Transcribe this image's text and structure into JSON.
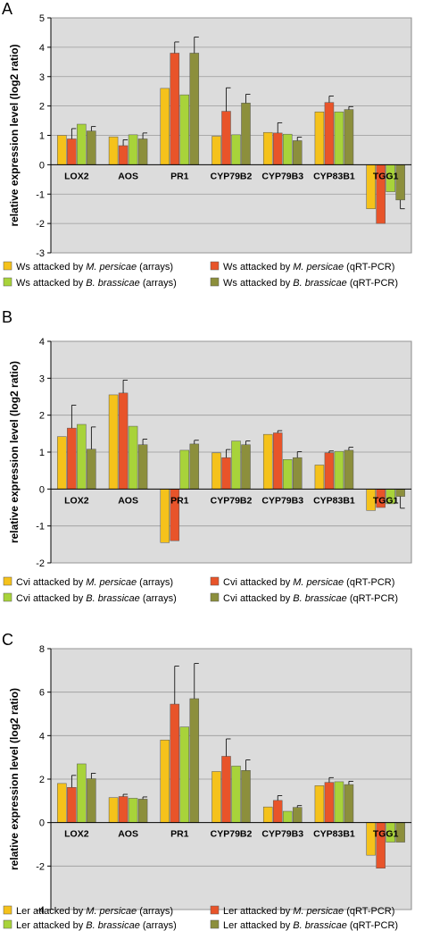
{
  "colors": {
    "series": [
      "#f5c21b",
      "#e8542a",
      "#a8d33a",
      "#8c8f3c"
    ],
    "plot_bg": "#dcdcdc",
    "grid": "#9a9a9a"
  },
  "chart_data": [
    {
      "panel": "A",
      "type": "bar",
      "ylabel": "relative expression level (log2 ratio)",
      "ylim": [
        -3,
        5
      ],
      "yticks": [
        -3,
        -2,
        -1,
        0,
        1,
        2,
        3,
        4,
        5
      ],
      "grid": true,
      "categories": [
        "LOX2",
        "AOS",
        "PR1",
        "CYP79B2",
        "CYP79B3",
        "CYP83B1",
        "TGG1"
      ],
      "series": [
        {
          "name": "Ws attacked by M. persicae (arrays)",
          "legend_prefix": "Ws attacked by ",
          "legend_species": "M. persicae",
          "legend_suffix": " (arrays)",
          "values": [
            1.0,
            0.95,
            2.6,
            0.97,
            1.1,
            1.8,
            -1.5
          ],
          "errors": [
            0,
            0,
            0,
            0,
            0,
            0,
            0
          ]
        },
        {
          "name": "Ws attacked by M. persicae (qRT-PCR)",
          "legend_prefix": "Ws attacked by ",
          "legend_species": "M. persicae",
          "legend_suffix": " (qRT-PCR)",
          "values": [
            0.88,
            0.65,
            3.8,
            1.82,
            1.08,
            2.12,
            -2.0
          ],
          "errors": [
            0.35,
            0.2,
            0.38,
            0.8,
            0.35,
            0.22,
            0
          ]
        },
        {
          "name": "Ws attacked by B. brassicae (arrays)",
          "legend_prefix": "Ws attacked by ",
          "legend_species": "B. brassicae",
          "legend_suffix": " (arrays)",
          "values": [
            1.38,
            1.02,
            2.38,
            1.02,
            1.04,
            1.8,
            -0.92
          ],
          "errors": [
            0,
            0,
            0,
            0,
            0,
            0,
            0
          ]
        },
        {
          "name": "Ws attacked by B. brassicae (qRT-PCR)",
          "legend_prefix": "Ws attacked by ",
          "legend_species": "B. brassicae",
          "legend_suffix": " (qRT-PCR)",
          "values": [
            1.15,
            0.88,
            3.8,
            2.1,
            0.82,
            1.88,
            -1.2
          ],
          "errors": [
            0.15,
            0.2,
            0.55,
            0.3,
            0.12,
            0.1,
            0.3
          ]
        }
      ]
    },
    {
      "panel": "B",
      "type": "bar",
      "ylabel": "relative expression level (log2 ratio)",
      "ylim": [
        -2,
        4
      ],
      "yticks": [
        -2,
        -1,
        0,
        1,
        2,
        3,
        4
      ],
      "grid": true,
      "categories": [
        "LOX2",
        "AOS",
        "PR1",
        "CYP79B2",
        "CYP79B3",
        "CYP83B1",
        "TGG1"
      ],
      "series": [
        {
          "name": "Cvi attacked by M. persicae (arrays)",
          "legend_prefix": "Cvi attacked by ",
          "legend_species": "M. persicae",
          "legend_suffix": " (arrays)",
          "values": [
            1.42,
            2.55,
            -1.45,
            0.98,
            1.48,
            0.65,
            -0.58
          ],
          "errors": [
            0,
            0,
            0,
            0,
            0,
            0,
            0
          ]
        },
        {
          "name": "Cvi attacked by M. persicae (qRT-PCR)",
          "legend_prefix": "Cvi attacked by ",
          "legend_species": "M. persicae",
          "legend_suffix": " (qRT-PCR)",
          "values": [
            1.65,
            2.6,
            -1.4,
            0.85,
            1.52,
            0.98,
            -0.5
          ],
          "errors": [
            0.62,
            0.35,
            0,
            0.22,
            0.06,
            0.05,
            0
          ]
        },
        {
          "name": "Cvi attacked by B. brassicae (arrays)",
          "legend_prefix": "Cvi attacked by ",
          "legend_species": "B. brassicae",
          "legend_suffix": " (arrays)",
          "values": [
            1.75,
            1.7,
            1.05,
            1.3,
            0.8,
            1.02,
            -0.4
          ],
          "errors": [
            0,
            0,
            0,
            0,
            0,
            0,
            0
          ]
        },
        {
          "name": "Cvi attacked by B. brassicae (qRT-PCR)",
          "legend_prefix": "Cvi attacked by ",
          "legend_species": "B. brassicae",
          "legend_suffix": " (qRT-PCR)",
          "values": [
            1.08,
            1.2,
            1.22,
            1.2,
            0.85,
            1.05,
            -0.2
          ],
          "errors": [
            0.6,
            0.15,
            0.1,
            0.1,
            0.16,
            0.08,
            0.32
          ]
        }
      ]
    },
    {
      "panel": "C",
      "type": "bar",
      "ylabel": "relative expression level (log2 ratio)",
      "ylim": [
        -4,
        8
      ],
      "yticks": [
        -4,
        -2,
        0,
        2,
        4,
        6,
        8
      ],
      "grid": true,
      "categories": [
        "LOX2",
        "AOS",
        "PR1",
        "CYP79B2",
        "CYP79B3",
        "CYP83B1",
        "TGG1"
      ],
      "series": [
        {
          "name": "Ler attacked by M. persicae (arrays)",
          "legend_prefix": "Ler attacked by ",
          "legend_species": "M. persicae",
          "legend_suffix": " (arrays)",
          "values": [
            1.8,
            1.15,
            3.8,
            2.35,
            0.72,
            1.7,
            -1.5
          ],
          "errors": [
            0,
            0,
            0,
            0,
            0,
            0,
            0
          ]
        },
        {
          "name": "Ler attacked by M. persicae (qRT-PCR)",
          "legend_prefix": "Ler attacked by ",
          "legend_species": "M. persicae",
          "legend_suffix": " (qRT-PCR)",
          "values": [
            1.62,
            1.2,
            5.45,
            3.05,
            1.02,
            1.85,
            -2.1
          ],
          "errors": [
            0.55,
            0.1,
            1.75,
            0.8,
            0.22,
            0.22,
            0
          ]
        },
        {
          "name": "Ler attacked by B. brassicae (arrays)",
          "legend_prefix": "Ler attacked by ",
          "legend_species": "B. brassicae",
          "legend_suffix": " (arrays)",
          "values": [
            2.7,
            1.12,
            4.4,
            2.6,
            0.52,
            1.88,
            -0.9
          ],
          "errors": [
            0,
            0,
            0,
            0,
            0,
            0,
            0
          ]
        },
        {
          "name": "Ler attacked by B. brassicae (qRT-PCR)",
          "legend_prefix": "Ler attacked by ",
          "legend_species": "B. brassicae",
          "legend_suffix": " (qRT-PCR)",
          "values": [
            2.02,
            1.08,
            5.7,
            2.4,
            0.7,
            1.75,
            -0.9
          ],
          "errors": [
            0.25,
            0.1,
            1.62,
            0.48,
            0.08,
            0.15,
            0
          ]
        }
      ]
    }
  ]
}
